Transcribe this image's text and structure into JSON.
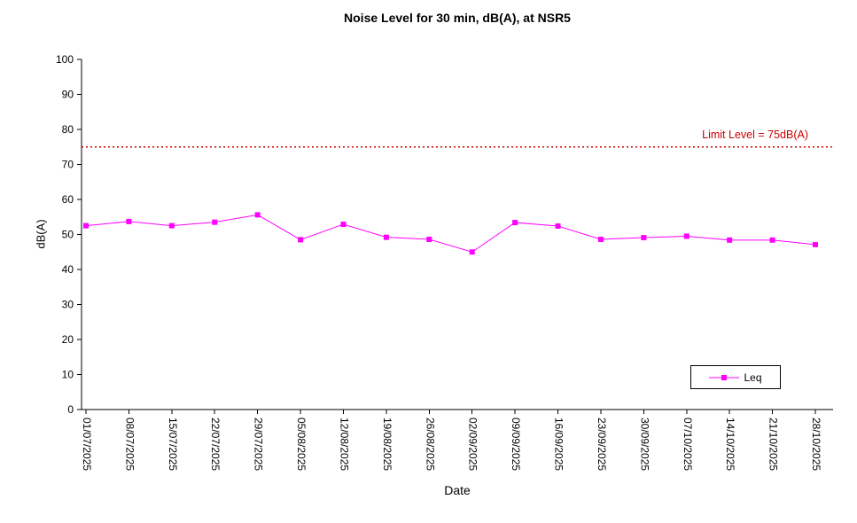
{
  "chart_data": {
    "type": "line",
    "title": "Noise Level for 30 min, dB(A), at NSR5",
    "xlabel": "Date",
    "ylabel": "dB(A)",
    "ylim": [
      0,
      100
    ],
    "ytick_step": 10,
    "grid": "off",
    "legend_position": "bottom-right-inside",
    "categories": [
      "01/07/2025",
      "08/07/2025",
      "15/07/2025",
      "22/07/2025",
      "29/07/2025",
      "05/08/2025",
      "12/08/2025",
      "19/08/2025",
      "26/08/2025",
      "02/09/2025",
      "09/09/2025",
      "16/09/2025",
      "23/09/2025",
      "30/09/2025",
      "07/10/2025",
      "14/10/2025",
      "21/10/2025",
      "28/10/2025"
    ],
    "series": [
      {
        "name": "Leq",
        "color": "#FF00FF",
        "marker": "square",
        "values": [
          52.5,
          53.7,
          52.5,
          53.5,
          55.6,
          48.5,
          52.9,
          49.2,
          48.6,
          45.0,
          53.4,
          52.4,
          48.6,
          49.1,
          49.5,
          48.4,
          48.4,
          47.1
        ]
      }
    ],
    "limit_line": {
      "value": 75,
      "label": "Limit Level = 75dB(A)",
      "color": "#CC0000",
      "style": "dotted"
    },
    "axis_color": "#000000"
  }
}
